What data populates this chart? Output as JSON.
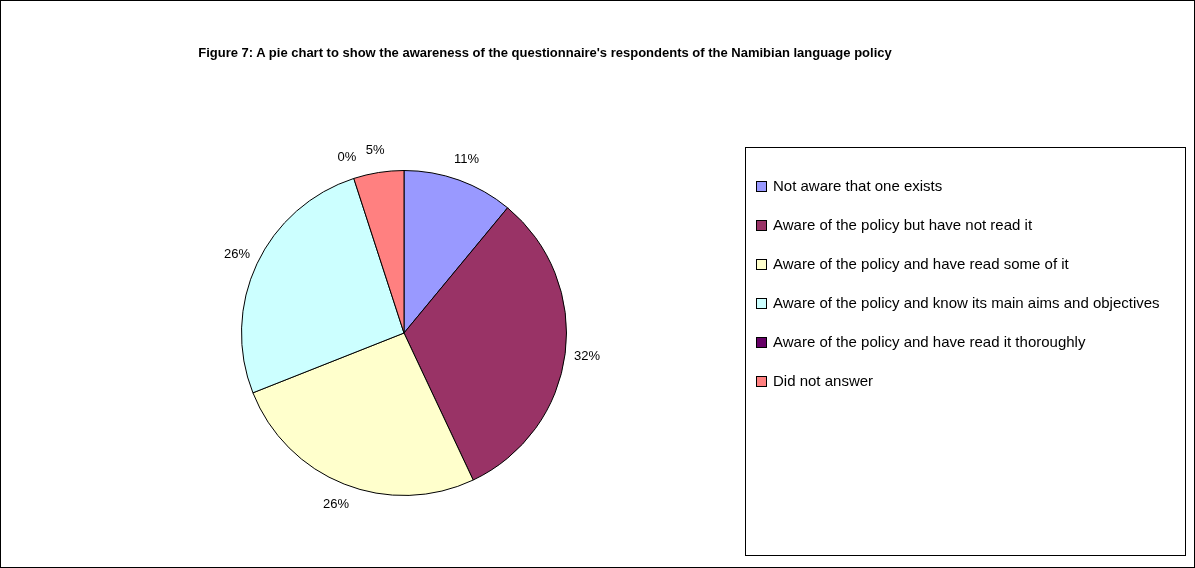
{
  "chart_data": {
    "type": "pie",
    "title": "Figure 7: A pie chart to show the awareness of the questionnaire's respondents of the Namibian language policy",
    "categories": [
      "Not aware that one exists",
      "Aware of the policy but have not read it",
      "Aware of the policy and have read some of it",
      "Aware of the policy and know its main aims and objectives",
      "Aware of the policy and have read it thoroughly",
      "Did not answer"
    ],
    "values": [
      11,
      32,
      26,
      26,
      0,
      5
    ],
    "colors": [
      "#9999ff",
      "#993366",
      "#ffffcc",
      "#ccffff",
      "#660066",
      "#ff8080"
    ],
    "value_labels": [
      "11%",
      "32%",
      "26%",
      "26%",
      "0%",
      "5%"
    ],
    "legend": "right"
  }
}
